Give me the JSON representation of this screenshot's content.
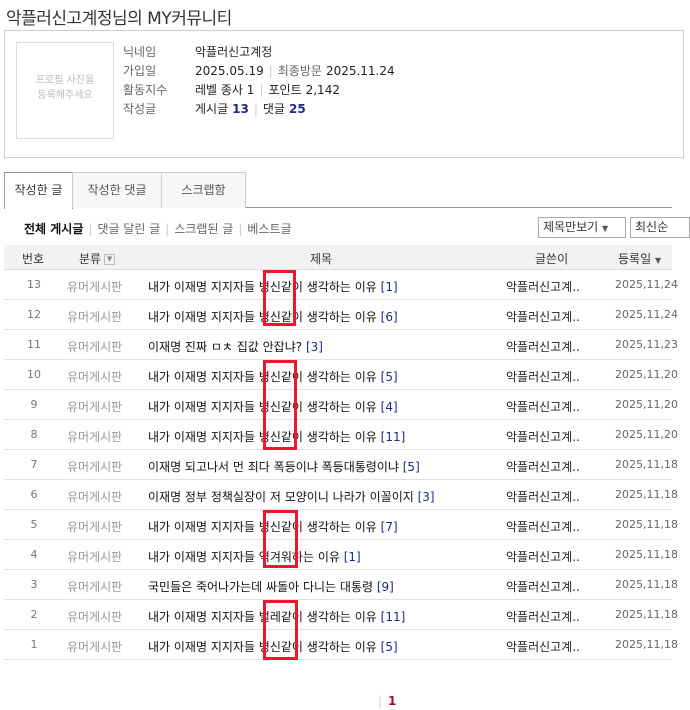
{
  "page_title": "악플러신고계정님의 MY커뮤니티",
  "profile": {
    "photo_placeholder_line1": "프로필 사진을",
    "photo_placeholder_line2": "등록해주세요",
    "nickname_label": "닉네임",
    "nickname": "악플러신고계정",
    "joined_label": "가입일",
    "joined": "2025.05.19",
    "last_visit_label": "최종방문",
    "last_visit": "2025.11.24",
    "activity_label": "활동지수",
    "level": "레벨 종사 1",
    "points_label": "포인트",
    "points": "2,142",
    "writing_label": "작성글",
    "posts_label": "게시글",
    "posts": "13",
    "comments_label": "댓글",
    "comments": "25"
  },
  "tabs": [
    "작성한 글",
    "작성한 댓글",
    "스크랩함"
  ],
  "filters": [
    "전체 게시글",
    "댓글 달린 글",
    "스크랩된 글",
    "베스트글"
  ],
  "view_select": "제목만보기",
  "sort_select": "최신순",
  "table": {
    "headers": {
      "no": "번호",
      "category": "분류",
      "title": "제목",
      "author": "글쓴이",
      "date": "등록일"
    },
    "rows": [
      {
        "no": "13",
        "category": "유머게시판",
        "title": "내가 이재명 지지자들 병신같이 생각하는 이유",
        "comments": "[1]",
        "author": "악플러신고계..",
        "date": "2025,11,24"
      },
      {
        "no": "12",
        "category": "유머게시판",
        "title": "내가 이재명 지지자들 병신같이 생각하는 이유",
        "comments": "[6]",
        "author": "악플러신고계..",
        "date": "2025,11,24"
      },
      {
        "no": "11",
        "category": "유머게시판",
        "title": "이재명 진짜 ㅁㅊ 집값 안잡냐?",
        "comments": "[3]",
        "author": "악플러신고계..",
        "date": "2025,11,23"
      },
      {
        "no": "10",
        "category": "유머게시판",
        "title": "내가 이재명 지지자들 병신같이 생각하는 이유",
        "comments": "[5]",
        "author": "악플러신고계..",
        "date": "2025,11,20"
      },
      {
        "no": "9",
        "category": "유머게시판",
        "title": "내가 이재명 지지자들 병신같이 생각하는 이유",
        "comments": "[4]",
        "author": "악플러신고계..",
        "date": "2025,11,20"
      },
      {
        "no": "8",
        "category": "유머게시판",
        "title": "내가 이재명 지지자들 병신같이 생각하는 이유",
        "comments": "[11]",
        "author": "악플러신고계..",
        "date": "2025,11,20"
      },
      {
        "no": "7",
        "category": "유머게시판",
        "title": "이재명 되고나서 먼 죄다 폭등이냐 폭등대통령이냐",
        "comments": "[5]",
        "author": "악플러신고계..",
        "date": "2025,11,18"
      },
      {
        "no": "6",
        "category": "유머게시판",
        "title": "이재명 정부 정책실장이 저 모양이니 나라가 이꼴이지",
        "comments": "[3]",
        "author": "악플러신고계..",
        "date": "2025,11,18"
      },
      {
        "no": "5",
        "category": "유머게시판",
        "title": "내가 이재명 지지자들 병신같이 생각하는 이유",
        "comments": "[7]",
        "author": "악플러신고계..",
        "date": "2025,11,18"
      },
      {
        "no": "4",
        "category": "유머게시판",
        "title": "내가 이재명 지지자들 역겨워하는 이유",
        "comments": "[1]",
        "author": "악플러신고계..",
        "date": "2025,11,18"
      },
      {
        "no": "3",
        "category": "유머게시판",
        "title": "국민들은 죽어나가는데 싸돌아 다니는 대통령",
        "comments": "[9]",
        "author": "악플러신고계..",
        "date": "2025,11,18"
      },
      {
        "no": "2",
        "category": "유머게시판",
        "title": "내가 이재명 지지자들 벌레같이 생각하는 이유",
        "comments": "[11]",
        "author": "악플러신고계..",
        "date": "2025,11,18"
      },
      {
        "no": "1",
        "category": "유머게시판",
        "title": "내가 이재명 지지자들 병신같이 생각하는 이유",
        "comments": "[5]",
        "author": "악플러신고계..",
        "date": "2025,11,18"
      }
    ]
  },
  "pagination": {
    "current": "1"
  },
  "annotation_color": "#f0142c"
}
